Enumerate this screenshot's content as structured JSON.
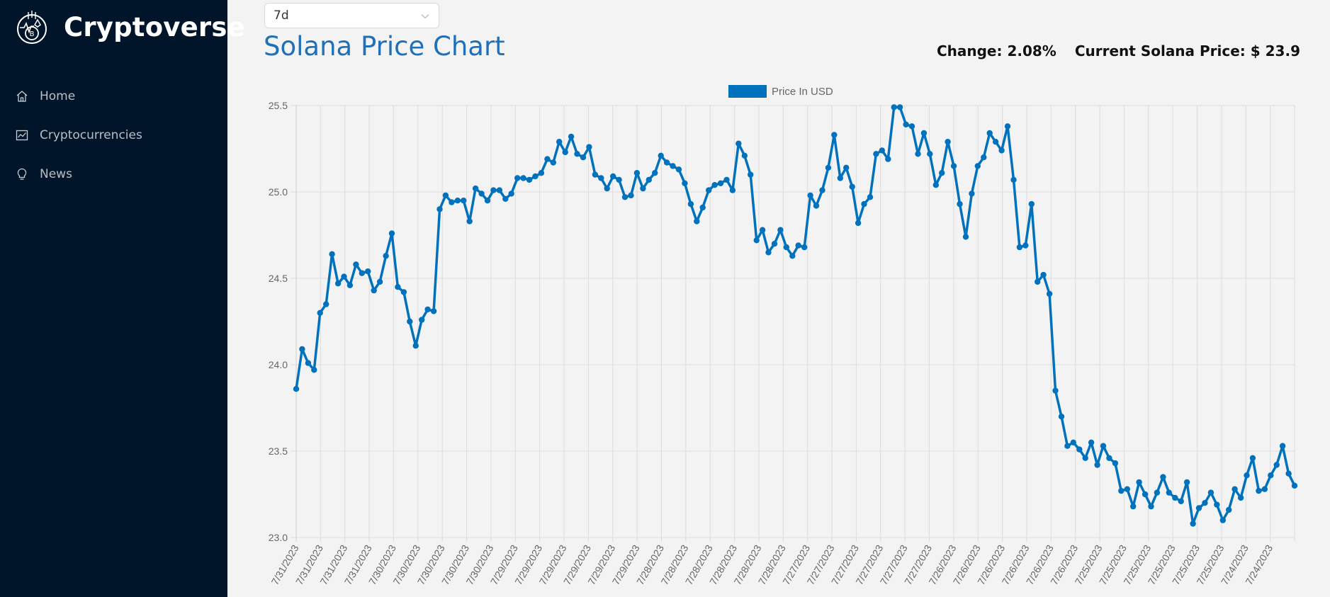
{
  "app": {
    "name": "Cryptoverse",
    "nav": [
      {
        "label": "Home",
        "icon": "home-icon"
      },
      {
        "label": "Cryptocurrencies",
        "icon": "fund-icon"
      },
      {
        "label": "News",
        "icon": "bulb-icon"
      }
    ]
  },
  "timeperiod": {
    "selected": "7d"
  },
  "header": {
    "title": "Solana Price Chart",
    "change": "Change: 2.08%",
    "current_price": "Current Solana Price: $ 23.9"
  },
  "colors": {
    "accent": "#0071bd",
    "sidebar": "#001529",
    "title": "#1f70b8"
  },
  "chart_data": {
    "type": "line",
    "legend": "Price In USD",
    "legend_position": "top-center",
    "grid": true,
    "ylim": [
      23.0,
      25.5
    ],
    "yticks": [
      "23.0",
      "23.5",
      "24.0",
      "24.5",
      "25.0",
      "25.5"
    ],
    "x_labels": [
      "7/31/2023",
      "7/31/2023",
      "7/31/2023",
      "7/31/2023",
      "7/30/2023",
      "7/30/2023",
      "7/30/2023",
      "7/30/2023",
      "7/30/2023",
      "7/29/2023",
      "7/29/2023",
      "7/29/2023",
      "7/29/2023",
      "7/29/2023",
      "7/29/2023",
      "7/28/2023",
      "7/28/2023",
      "7/28/2023",
      "7/28/2023",
      "7/28/2023",
      "7/28/2023",
      "7/27/2023",
      "7/27/2023",
      "7/27/2023",
      "7/27/2023",
      "7/27/2023",
      "7/27/2023",
      "7/26/2023",
      "7/26/2023",
      "7/26/2023",
      "7/26/2023",
      "7/26/2023",
      "7/26/2023",
      "7/25/2023",
      "7/25/2023",
      "7/25/2023",
      "7/25/2023",
      "7/25/2023",
      "7/25/2023",
      "7/24/2023",
      "7/24/2023"
    ],
    "series": [
      {
        "name": "Price In USD",
        "values": [
          23.86,
          24.09,
          24.01,
          23.97,
          24.3,
          24.35,
          24.64,
          24.47,
          24.51,
          24.46,
          24.58,
          24.53,
          24.54,
          24.43,
          24.48,
          24.63,
          24.76,
          24.45,
          24.42,
          24.25,
          24.11,
          24.26,
          24.32,
          24.31,
          24.9,
          24.98,
          24.94,
          24.95,
          24.95,
          24.83,
          25.02,
          24.99,
          24.95,
          25.01,
          25.01,
          24.96,
          24.99,
          25.08,
          25.08,
          25.07,
          25.09,
          25.11,
          25.19,
          25.17,
          25.29,
          25.23,
          25.32,
          25.22,
          25.2,
          25.26,
          25.1,
          25.08,
          25.02,
          25.09,
          25.07,
          24.97,
          24.98,
          25.11,
          25.02,
          25.07,
          25.11,
          25.21,
          25.17,
          25.15,
          25.13,
          25.05,
          24.93,
          24.83,
          24.91,
          25.01,
          25.04,
          25.05,
          25.07,
          25.01,
          25.28,
          25.21,
          25.1,
          24.72,
          24.78,
          24.65,
          24.7,
          24.78,
          24.68,
          24.63,
          24.69,
          24.68,
          24.98,
          24.92,
          25.01,
          25.14,
          25.33,
          25.08,
          25.14,
          25.03,
          24.82,
          24.93,
          24.97,
          25.22,
          25.24,
          25.19,
          25.49,
          25.49,
          25.39,
          25.38,
          25.22,
          25.34,
          25.22,
          25.04,
          25.11,
          25.29,
          25.15,
          24.93,
          24.74,
          24.99,
          25.15,
          25.2,
          25.34,
          25.29,
          25.24,
          25.38,
          25.07,
          24.68,
          24.69,
          24.93,
          24.48,
          24.52,
          24.41,
          23.85,
          23.7,
          23.53,
          23.55,
          23.51,
          23.46,
          23.55,
          23.42,
          23.53,
          23.46,
          23.43,
          23.27,
          23.28,
          23.18,
          23.32,
          23.25,
          23.18,
          23.26,
          23.35,
          23.26,
          23.23,
          23.21,
          23.32,
          23.08,
          23.17,
          23.2,
          23.26,
          23.19,
          23.1,
          23.16,
          23.28,
          23.23,
          23.36,
          23.46,
          23.27,
          23.28,
          23.36,
          23.42,
          23.53,
          23.37,
          23.3
        ]
      }
    ]
  }
}
